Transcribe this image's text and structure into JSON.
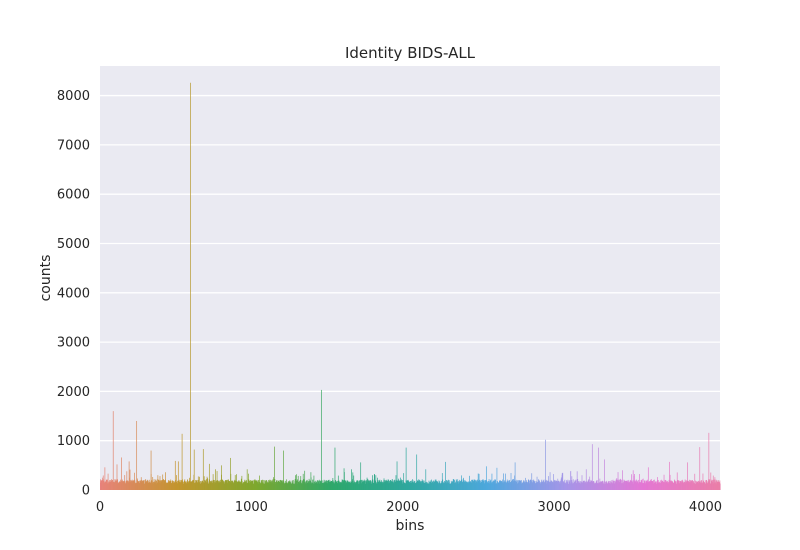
{
  "chart_data": {
    "type": "bar",
    "title": "Identity BIDS-ALL",
    "xlabel": "bins",
    "ylabel": "counts",
    "xlim": [
      0,
      4096
    ],
    "ylim": [
      0,
      8600
    ],
    "grid": true,
    "xticks": [
      0,
      1000,
      2000,
      3000,
      4000
    ],
    "yticks": [
      0,
      1000,
      2000,
      3000,
      4000,
      5000,
      6000,
      7000,
      8000
    ],
    "xtick_labels": [
      "0",
      "1000",
      "2000",
      "3000",
      "4000"
    ],
    "ytick_labels": [
      "0",
      "1000",
      "2000",
      "3000",
      "4000",
      "5000",
      "6000",
      "7000",
      "8000"
    ],
    "bin_count": 4096,
    "baseline_count_range": [
      100,
      260
    ],
    "spikes": [
      {
        "x": 15,
        "y": 250
      },
      {
        "x": 30,
        "y": 460
      },
      {
        "x": 60,
        "y": 200
      },
      {
        "x": 85,
        "y": 1600
      },
      {
        "x": 110,
        "y": 520
      },
      {
        "x": 140,
        "y": 660
      },
      {
        "x": 175,
        "y": 380
      },
      {
        "x": 190,
        "y": 580
      },
      {
        "x": 225,
        "y": 350
      },
      {
        "x": 240,
        "y": 1400
      },
      {
        "x": 270,
        "y": 260
      },
      {
        "x": 335,
        "y": 800
      },
      {
        "x": 380,
        "y": 300
      },
      {
        "x": 430,
        "y": 360
      },
      {
        "x": 495,
        "y": 590
      },
      {
        "x": 515,
        "y": 580
      },
      {
        "x": 540,
        "y": 1140
      },
      {
        "x": 595,
        "y": 8260
      },
      {
        "x": 620,
        "y": 820
      },
      {
        "x": 680,
        "y": 830
      },
      {
        "x": 720,
        "y": 530
      },
      {
        "x": 760,
        "y": 420
      },
      {
        "x": 800,
        "y": 500
      },
      {
        "x": 860,
        "y": 650
      },
      {
        "x": 900,
        "y": 320
      },
      {
        "x": 970,
        "y": 420
      },
      {
        "x": 1150,
        "y": 880
      },
      {
        "x": 1210,
        "y": 800
      },
      {
        "x": 1290,
        "y": 300
      },
      {
        "x": 1350,
        "y": 390
      },
      {
        "x": 1460,
        "y": 2030
      },
      {
        "x": 1550,
        "y": 860
      },
      {
        "x": 1610,
        "y": 440
      },
      {
        "x": 1660,
        "y": 420
      },
      {
        "x": 1720,
        "y": 560
      },
      {
        "x": 1820,
        "y": 300
      },
      {
        "x": 1960,
        "y": 580
      },
      {
        "x": 2020,
        "y": 860
      },
      {
        "x": 2090,
        "y": 720
      },
      {
        "x": 2150,
        "y": 420
      },
      {
        "x": 2280,
        "y": 570
      },
      {
        "x": 2550,
        "y": 480
      },
      {
        "x": 2620,
        "y": 450
      },
      {
        "x": 2740,
        "y": 560
      },
      {
        "x": 2850,
        "y": 340
      },
      {
        "x": 2940,
        "y": 1020
      },
      {
        "x": 3050,
        "y": 300
      },
      {
        "x": 3150,
        "y": 380
      },
      {
        "x": 3210,
        "y": 420
      },
      {
        "x": 3250,
        "y": 930
      },
      {
        "x": 3290,
        "y": 860
      },
      {
        "x": 3330,
        "y": 620
      },
      {
        "x": 3450,
        "y": 400
      },
      {
        "x": 3520,
        "y": 400
      },
      {
        "x": 3620,
        "y": 460
      },
      {
        "x": 3760,
        "y": 570
      },
      {
        "x": 3880,
        "y": 560
      },
      {
        "x": 3960,
        "y": 870
      },
      {
        "x": 4020,
        "y": 1160
      },
      {
        "x": 4060,
        "y": 260
      }
    ],
    "palette": [
      "#e8837c",
      "#c3962f",
      "#7fa82f",
      "#2fa86c",
      "#30a8a0",
      "#4fa8dd",
      "#a596e8",
      "#e478d4",
      "#ea7fa8"
    ]
  }
}
